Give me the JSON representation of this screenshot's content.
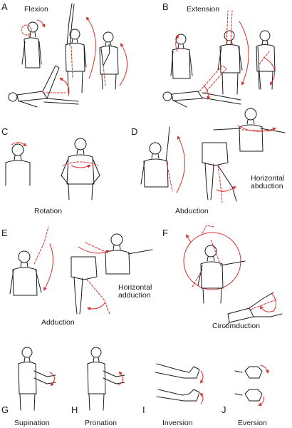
{
  "colors": {
    "outline": "#1a1a1a",
    "movement": "#d9302c",
    "background": "#ffffff"
  },
  "panels": {
    "A": {
      "letter": "A",
      "caption": "Flexion"
    },
    "B": {
      "letter": "B",
      "caption": "Extension"
    },
    "C": {
      "letter": "C",
      "caption": "Rotation"
    },
    "D": {
      "letter": "D",
      "caption": "Abduction",
      "sub_caption": "Horizontal abduction"
    },
    "E": {
      "letter": "E",
      "caption": "Adduction",
      "sub_caption": "Horizontal adduction"
    },
    "F": {
      "letter": "F",
      "caption": "Circumduction"
    },
    "G": {
      "letter": "G",
      "caption": "Supination"
    },
    "H": {
      "letter": "H",
      "caption": "Pronation"
    },
    "I": {
      "letter": "I",
      "caption": "Inversion"
    },
    "J": {
      "letter": "J",
      "caption": "Eversion"
    }
  }
}
